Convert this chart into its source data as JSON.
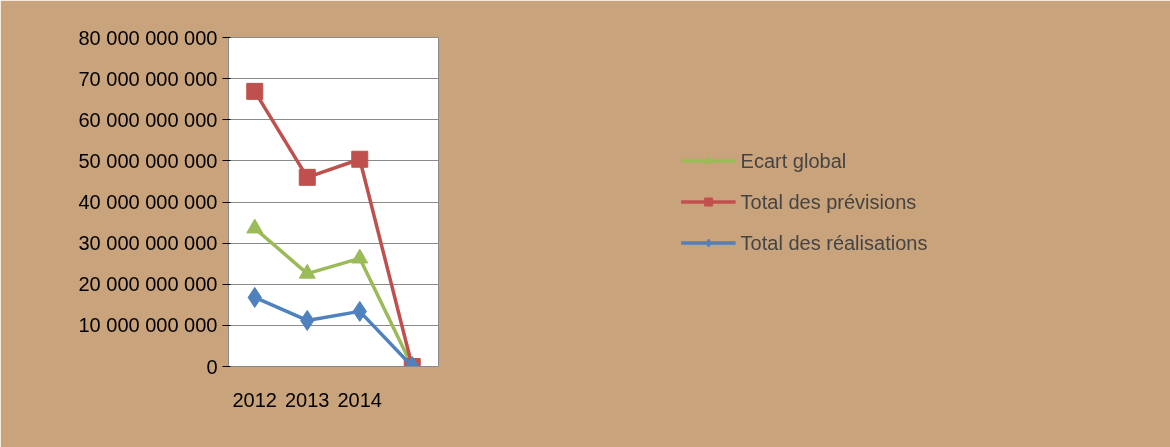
{
  "chart_data": {
    "type": "line",
    "categories": [
      "2012",
      "2013",
      "2014",
      null
    ],
    "series": [
      {
        "name": "Ecart global",
        "color": "#9bbb59",
        "marker": "triangle",
        "values": [
          33600000000,
          22600000000,
          26300000000,
          0
        ]
      },
      {
        "name": "Total des prévisions",
        "color": "#c0504d",
        "marker": "square",
        "values": [
          66900000000,
          46000000000,
          50400000000,
          0
        ]
      },
      {
        "name": "Total des réalisations",
        "color": "#4f81bd",
        "marker": "diamond",
        "values": [
          16800000000,
          11200000000,
          13400000000,
          0
        ]
      }
    ],
    "ylim": [
      0,
      80000000000
    ],
    "yticks": [
      {
        "value": 0,
        "label": "0"
      },
      {
        "value": 10000000000,
        "label": "10 000 000 000"
      },
      {
        "value": 20000000000,
        "label": "20 000 000 000"
      },
      {
        "value": 30000000000,
        "label": "30 000 000 000"
      },
      {
        "value": 40000000000,
        "label": "40 000 000 000"
      },
      {
        "value": 50000000000,
        "label": "50 000 000 000"
      },
      {
        "value": 60000000000,
        "label": "60 000 000 000"
      },
      {
        "value": 70000000000,
        "label": "70 000 000 000"
      },
      {
        "value": 80000000000,
        "label": "80 000 000 000"
      }
    ],
    "grid": "y",
    "legend": "right",
    "line_style": "solid"
  }
}
